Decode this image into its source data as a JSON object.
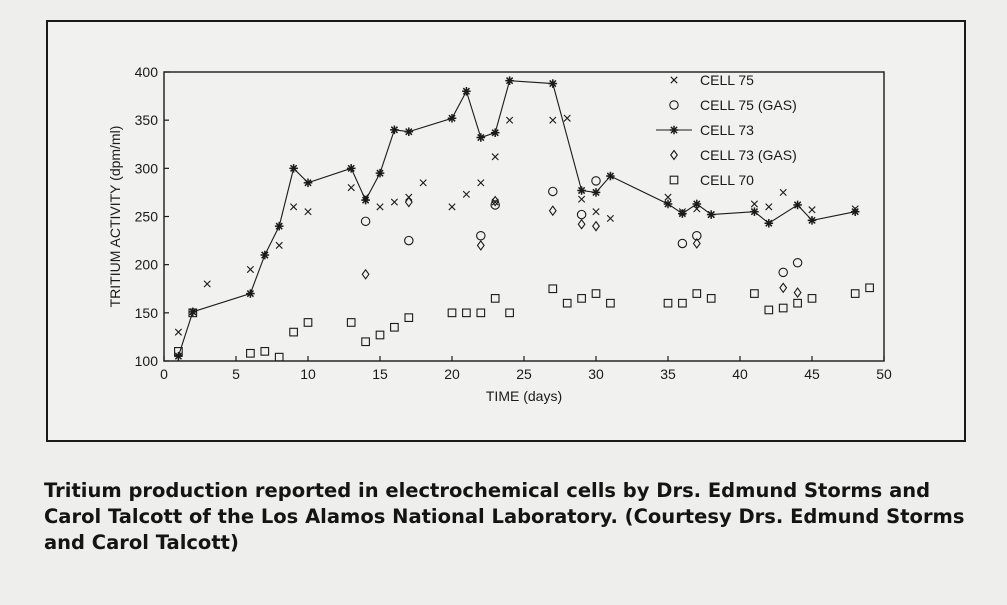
{
  "chart_data": {
    "type": "scatter",
    "xlabel": "TIME (days)",
    "ylabel": "TRITIUM ACTIVITY (dpm/ml)",
    "xlim": [
      0,
      50
    ],
    "ylim": [
      100,
      400
    ],
    "xticks": [
      0,
      5,
      10,
      15,
      20,
      25,
      30,
      35,
      40,
      45,
      50
    ],
    "yticks": [
      100,
      150,
      200,
      250,
      300,
      350,
      400
    ],
    "grid": false,
    "legend_position": "top-right",
    "series": [
      {
        "name": "CELL 75",
        "marker": "x",
        "line": false,
        "points": [
          [
            1,
            130
          ],
          [
            3,
            180
          ],
          [
            6,
            195
          ],
          [
            7,
            210
          ],
          [
            8,
            220
          ],
          [
            9,
            260
          ],
          [
            10,
            255
          ],
          [
            13,
            280
          ],
          [
            14,
            270
          ],
          [
            15,
            260
          ],
          [
            16,
            265
          ],
          [
            17,
            270
          ],
          [
            18,
            285
          ],
          [
            20,
            260
          ],
          [
            21,
            273
          ],
          [
            22,
            285
          ],
          [
            23,
            312
          ],
          [
            23,
            265
          ],
          [
            24,
            350
          ],
          [
            27,
            350
          ],
          [
            28,
            352
          ],
          [
            29,
            268
          ],
          [
            30,
            255
          ],
          [
            31,
            248
          ],
          [
            35,
            270
          ],
          [
            36,
            255
          ],
          [
            37,
            258
          ],
          [
            38,
            252
          ],
          [
            41,
            263
          ],
          [
            42,
            260
          ],
          [
            43,
            275
          ],
          [
            44,
            262
          ],
          [
            45,
            257
          ],
          [
            48,
            258
          ]
        ]
      },
      {
        "name": "CELL 75 (GAS)",
        "marker": "circle",
        "line": false,
        "points": [
          [
            14,
            245
          ],
          [
            17,
            225
          ],
          [
            22,
            230
          ],
          [
            23,
            262
          ],
          [
            27,
            276
          ],
          [
            29,
            252
          ],
          [
            30,
            287
          ],
          [
            36,
            222
          ],
          [
            37,
            230
          ],
          [
            43,
            192
          ],
          [
            44,
            202
          ]
        ]
      },
      {
        "name": "CELL 73",
        "marker": "star",
        "line": true,
        "points": [
          [
            1,
            105
          ],
          [
            2,
            151
          ],
          [
            6,
            170
          ],
          [
            7,
            210
          ],
          [
            8,
            240
          ],
          [
            9,
            300
          ],
          [
            10,
            285
          ],
          [
            13,
            300
          ],
          [
            14,
            267
          ],
          [
            15,
            295
          ],
          [
            16,
            340
          ],
          [
            17,
            338
          ],
          [
            20,
            352
          ],
          [
            21,
            380
          ],
          [
            22,
            332
          ],
          [
            23,
            337
          ],
          [
            24,
            391
          ],
          [
            27,
            388
          ],
          [
            29,
            277
          ],
          [
            30,
            275
          ],
          [
            31,
            292
          ],
          [
            35,
            263
          ],
          [
            36,
            253
          ],
          [
            37,
            263
          ],
          [
            38,
            252
          ],
          [
            41,
            255
          ],
          [
            42,
            243
          ],
          [
            44,
            262
          ],
          [
            45,
            246
          ],
          [
            48,
            255
          ]
        ]
      },
      {
        "name": "CELL 73 (GAS)",
        "marker": "diamond",
        "line": false,
        "points": [
          [
            14,
            190
          ],
          [
            17,
            265
          ],
          [
            22,
            220
          ],
          [
            23,
            266
          ],
          [
            27,
            256
          ],
          [
            29,
            242
          ],
          [
            30,
            240
          ],
          [
            37,
            222
          ],
          [
            43,
            176
          ],
          [
            44,
            171
          ]
        ]
      },
      {
        "name": "CELL 70",
        "marker": "square",
        "line": false,
        "points": [
          [
            1,
            110
          ],
          [
            2,
            150
          ],
          [
            6,
            108
          ],
          [
            7,
            110
          ],
          [
            8,
            104
          ],
          [
            9,
            130
          ],
          [
            10,
            140
          ],
          [
            13,
            140
          ],
          [
            14,
            120
          ],
          [
            15,
            127
          ],
          [
            16,
            135
          ],
          [
            17,
            145
          ],
          [
            20,
            150
          ],
          [
            21,
            150
          ],
          [
            22,
            150
          ],
          [
            23,
            165
          ],
          [
            24,
            150
          ],
          [
            27,
            175
          ],
          [
            28,
            160
          ],
          [
            29,
            165
          ],
          [
            30,
            170
          ],
          [
            31,
            160
          ],
          [
            35,
            160
          ],
          [
            36,
            160
          ],
          [
            37,
            170
          ],
          [
            38,
            165
          ],
          [
            41,
            170
          ],
          [
            42,
            153
          ],
          [
            43,
            155
          ],
          [
            44,
            160
          ],
          [
            45,
            165
          ],
          [
            48,
            170
          ],
          [
            49,
            176
          ]
        ]
      }
    ]
  },
  "caption": "Tritium production reported in electrochemical cells by Drs. Edmund Storms and Carol Talcott of the Los Alamos National Laboratory. (Courtesy Drs. Edmund Storms and Carol Talcott)"
}
